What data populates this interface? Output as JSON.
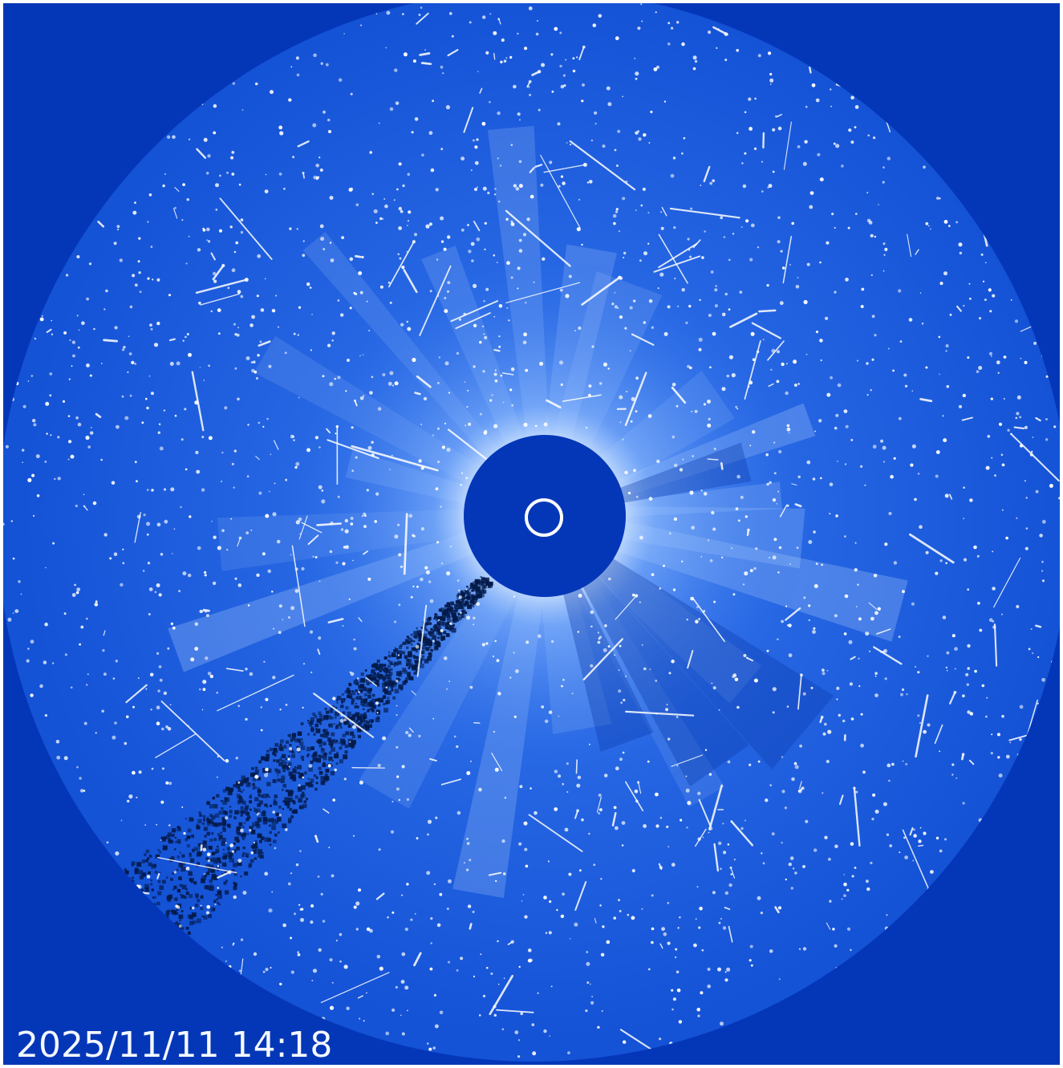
{
  "image": {
    "subject": "coronagraph-view",
    "colors": {
      "border": "#ffffff",
      "background": "#0437b8",
      "field_outer": "#1452d6",
      "field_inner": "#2a6be6",
      "corona": "#9cc8ff",
      "occulter": "#0437b8",
      "sun_ring": "#ffffff",
      "stars": "#ffffff",
      "comet_tail": "#031a4a"
    }
  },
  "timestamp": "2025/11/11 14:18"
}
